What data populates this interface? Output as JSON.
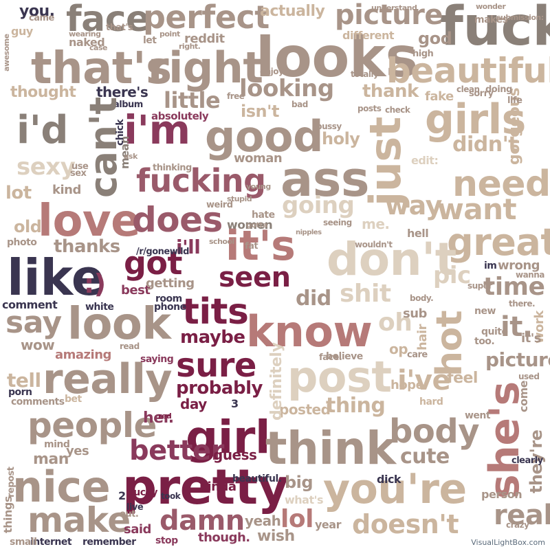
{
  "colors": {
    "taupe": "#a89488",
    "gray": "#8a8078",
    "tan": "#cbb59e",
    "rose": "#b67a78",
    "plum": "#8a3a5c",
    "navy": "#3a3550",
    "lightTan": "#ddd0bf",
    "maroon": "#7a1f45",
    "mauve": "#9a5a6a"
  },
  "words": [
    "looks",
    "fuck",
    "that's",
    "right",
    "beautiful",
    "face",
    "perfect",
    "picture",
    "actually",
    "you.",
    "reddit",
    "naked",
    "guy",
    "looking",
    "thought",
    "there's",
    "album",
    "little",
    "isn't",
    "thank",
    "just",
    "girls",
    "i'd",
    "i'm",
    "good",
    "can't",
    "gorgeous",
    "ass",
    "sexy",
    "fucking",
    "didn't",
    "need",
    "holy",
    "love",
    "does",
    "going",
    "way",
    "want",
    "lot",
    "old",
    "it's",
    "great",
    "don't",
    "got",
    "like",
    ":)",
    "i'll",
    "seen",
    "thanks",
    "best",
    "pic",
    "time",
    "tits",
    "did",
    "shit",
    "comment",
    "know",
    "say",
    "look",
    "hot",
    "it.",
    "maybe",
    "oh",
    "wow",
    "amazing",
    "really",
    "sure",
    "post",
    "probably",
    "i've",
    "she's",
    "tell",
    "people",
    "girl",
    "body",
    "better",
    "posted",
    "thing",
    "think",
    "definitely",
    "her.",
    "cute",
    "nice",
    "pretty",
    "you're",
    "damn",
    "make",
    "real",
    "lol",
    "doesn't",
    "wish",
    "said",
    "yeah",
    "big",
    "guess",
    "they're",
    "pictures",
    "bet",
    "work",
    "fake",
    "god",
    "came",
    "kinda",
    "dick",
    "different",
    "wrong",
    "women",
    "woman",
    "yes",
    "man",
    "hair",
    "feel",
    "hope",
    "hard",
    "edit:",
    "remember",
    "internet",
    "small",
    "stop",
    "though.",
    "what's",
    "year",
    "things",
    "it's",
    "me.",
    "hell",
    "sub",
    "im",
    "/r/gonewild",
    "room",
    "phone",
    "getting",
    "white",
    "saying",
    "mean",
    "chick",
    "absolutely",
    "thinking",
    "ask",
    "kind",
    "sex",
    "use",
    "photo",
    "comments",
    "porn",
    "mind",
    "repost",
    "lucky",
    "took",
    "beautiful.",
    "live",
    "2",
    "3",
    "day",
    "red",
    "out.",
    "that's",
    "sorry",
    "life",
    "doing",
    "clean",
    "makes",
    "high",
    "let",
    "point",
    "right.",
    "case",
    "wearing",
    "awesome",
    "read",
    "school",
    "stupid",
    "young",
    "weird",
    "fat",
    "hate",
    "face.",
    "believe",
    "care",
    "op",
    "come",
    "used",
    "went",
    "crazy",
    "clearly",
    "person",
    "new",
    "quite",
    "too.",
    "there.",
    "wanna",
    "super",
    "body.",
    "bad",
    "free",
    "enjoy",
    "wouldn't",
    "seeing",
    "nipples",
    "gotta",
    "pussy",
    "check",
    "posts",
    "totally",
    "understand",
    "wonder",
    "submission:"
  ],
  "watermark": "VisualLightBox.com"
}
